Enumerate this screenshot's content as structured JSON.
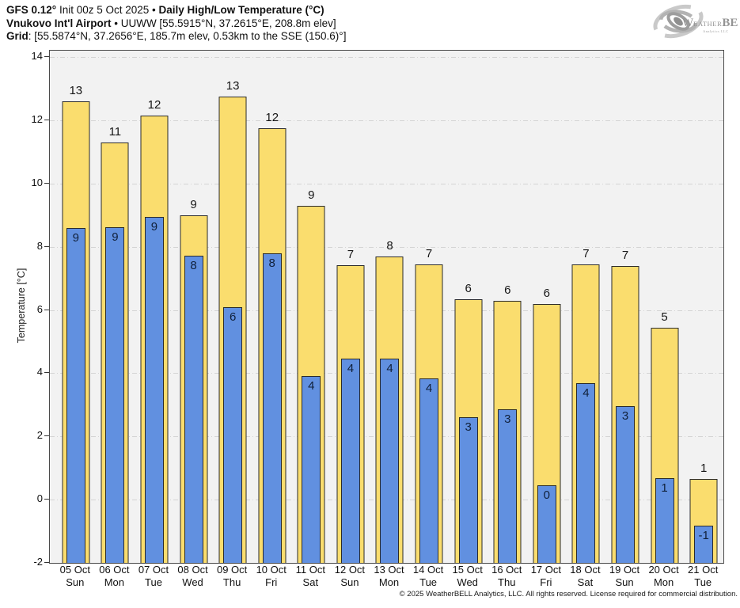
{
  "header": {
    "line1": {
      "model": "GFS 0.12°",
      "init": " Init 00z 5 Oct 2025 • ",
      "title": "Daily High/Low Temperature (°C)"
    },
    "line2": {
      "station": "Vnukovo Int'l Airport",
      "sep": " • ",
      "details": "UUWW [55.5915°N, 37.2615°E, 208.8m elev]"
    },
    "line3": {
      "label": "Grid",
      "details": ": [55.5874°N, 37.2656°E, 185.7m elev, 0.53km to the SSE (150.6)°]"
    }
  },
  "logo": {
    "part1": "W",
    "part2": "EATHER",
    "part3": "BELL",
    "sub": "Analytics LLC"
  },
  "footer": {
    "copyright": "© 2025 WeatherBELL Analytics, LLC. All rights reserved. License required for commercial distribution."
  },
  "chart_data": {
    "type": "bar",
    "title": "GFS 0.12° Init 00z 5 Oct 2025 • Daily High/Low Temperature (°C)",
    "subtitle": "Vnukovo Int'l Airport • UUWW",
    "ylabel": "Temperature [°C]",
    "xlabel": "",
    "ylim": [
      -2,
      14.2
    ],
    "yticks": [
      14,
      12,
      10,
      8,
      6,
      4,
      2,
      0,
      -2
    ],
    "grid": true,
    "legend_position": "none",
    "plot_bg": "#f2f2f2",
    "grid_color": "#d4d4d4",
    "bar_border": "#2b2b2b",
    "categories": [
      "05 Oct",
      "06 Oct",
      "07 Oct",
      "08 Oct",
      "09 Oct",
      "10 Oct",
      "11 Oct",
      "12 Oct",
      "13 Oct",
      "14 Oct",
      "15 Oct",
      "16 Oct",
      "17 Oct",
      "18 Oct",
      "19 Oct",
      "20 Oct",
      "21 Oct"
    ],
    "weekdays": [
      "Sun",
      "Mon",
      "Tue",
      "Wed",
      "Thu",
      "Fri",
      "Sat",
      "Sun",
      "Mon",
      "Tue",
      "Wed",
      "Thu",
      "Fri",
      "Sat",
      "Sun",
      "Mon",
      "Tue"
    ],
    "series": [
      {
        "name": "Daily High",
        "color": "#fadd6e",
        "values": [
          12.6,
          11.3,
          12.15,
          9.0,
          12.75,
          11.75,
          9.3,
          7.42,
          7.7,
          7.45,
          6.35,
          6.3,
          6.2,
          7.45,
          7.38,
          5.45,
          0.65
        ],
        "labels": [
          "13",
          "11",
          "12",
          "9",
          "13",
          "12",
          "9",
          "7",
          "8",
          "7",
          "6",
          "6",
          "6",
          "7",
          "7",
          "5",
          "1"
        ]
      },
      {
        "name": "Daily Low",
        "color": "#6190e0",
        "values": [
          8.6,
          8.62,
          8.95,
          7.72,
          6.1,
          7.8,
          3.9,
          4.47,
          4.45,
          3.83,
          2.6,
          2.85,
          0.45,
          3.68,
          2.97,
          0.67,
          -0.82
        ],
        "labels": [
          "9",
          "9",
          "9",
          "8",
          "6",
          "8",
          "4",
          "4",
          "4",
          "4",
          "3",
          "3",
          "0",
          "4",
          "3",
          "1",
          "-1"
        ]
      }
    ]
  }
}
